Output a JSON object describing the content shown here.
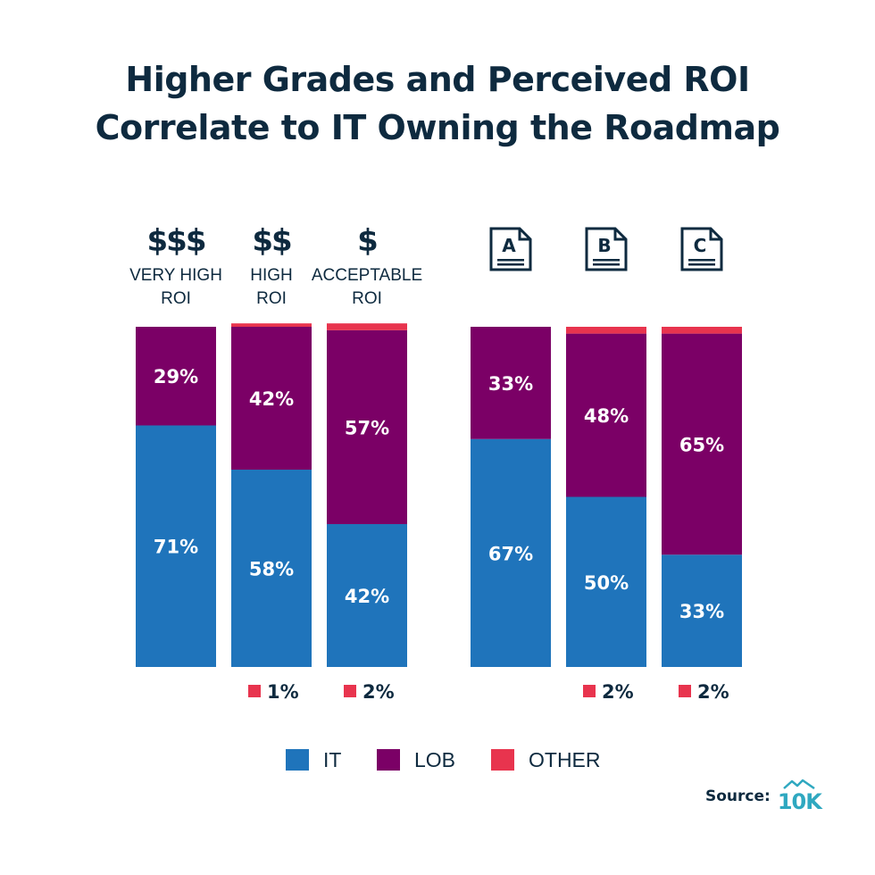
{
  "title_line1": "Higher Grades and Perceived ROI",
  "title_line2": "Correlate to IT Owning the Roadmap",
  "colors": {
    "IT": "#1f74bb",
    "LOB": "#7b0066",
    "OTHER": "#e8344e",
    "text": "#0e2a3f",
    "logo": "#2fa8c0"
  },
  "roi_headers": [
    {
      "symbol": "$$$",
      "line1": "VERY HIGH",
      "line2": "ROI"
    },
    {
      "symbol": "$$",
      "line1": "HIGH",
      "line2": "ROI"
    },
    {
      "symbol": "$",
      "line1": "ACCEPTABLE",
      "line2": "ROI"
    }
  ],
  "grade_headers": [
    {
      "letter": "A",
      "icon": "document-icon"
    },
    {
      "letter": "B",
      "icon": "document-icon"
    },
    {
      "letter": "C",
      "icon": "document-icon"
    }
  ],
  "legend": [
    "IT",
    "LOB",
    "OTHER"
  ],
  "source_label": "Source:",
  "source_logo": "10K",
  "chart_data": {
    "type": "bar",
    "stacked": true,
    "groups": [
      {
        "name": "ROI",
        "categories": [
          "VERY HIGH ROI",
          "HIGH ROI",
          "ACCEPTABLE ROI"
        ]
      },
      {
        "name": "Grade",
        "categories": [
          "A",
          "B",
          "C"
        ]
      }
    ],
    "categories": [
      "VERY HIGH ROI",
      "HIGH ROI",
      "ACCEPTABLE ROI",
      "A",
      "B",
      "C"
    ],
    "series": [
      {
        "name": "IT",
        "values": [
          71,
          58,
          42,
          67,
          50,
          33
        ],
        "labels": [
          "71%",
          "58%",
          "42%",
          "67%",
          "50%",
          "33%"
        ]
      },
      {
        "name": "LOB",
        "values": [
          29,
          42,
          57,
          33,
          48,
          65
        ],
        "labels": [
          "29%",
          "42%",
          "57%",
          "33%",
          "48%",
          "65%"
        ]
      },
      {
        "name": "OTHER",
        "values": [
          0,
          1,
          2,
          0,
          2,
          2
        ],
        "labels": [
          "",
          "1%",
          "2%",
          "",
          "2%",
          "2%"
        ]
      }
    ],
    "ylim": [
      0,
      100
    ],
    "legend_position": "bottom-center"
  }
}
